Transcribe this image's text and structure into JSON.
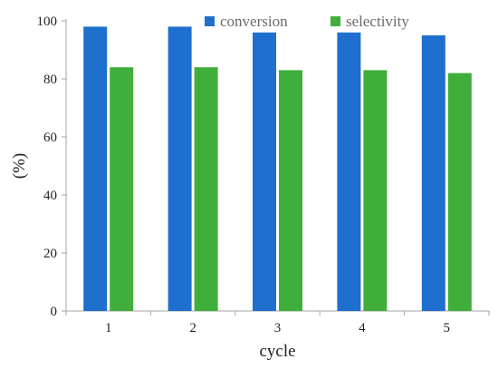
{
  "chart_data": {
    "type": "bar",
    "title": "",
    "xlabel": "cycle",
    "ylabel": "(%)",
    "categories": [
      "1",
      "2",
      "3",
      "4",
      "5"
    ],
    "series": [
      {
        "name": "conversion",
        "values": [
          98,
          98,
          96,
          96,
          95
        ],
        "color": "#1f6fcf"
      },
      {
        "name": "selectivity",
        "values": [
          84,
          84,
          83,
          83,
          82
        ],
        "color": "#3fae3a"
      }
    ],
    "ylim": [
      0,
      100
    ],
    "yticks": [
      0,
      20,
      40,
      60,
      80,
      100
    ],
    "grid": false,
    "legend": "top"
  }
}
